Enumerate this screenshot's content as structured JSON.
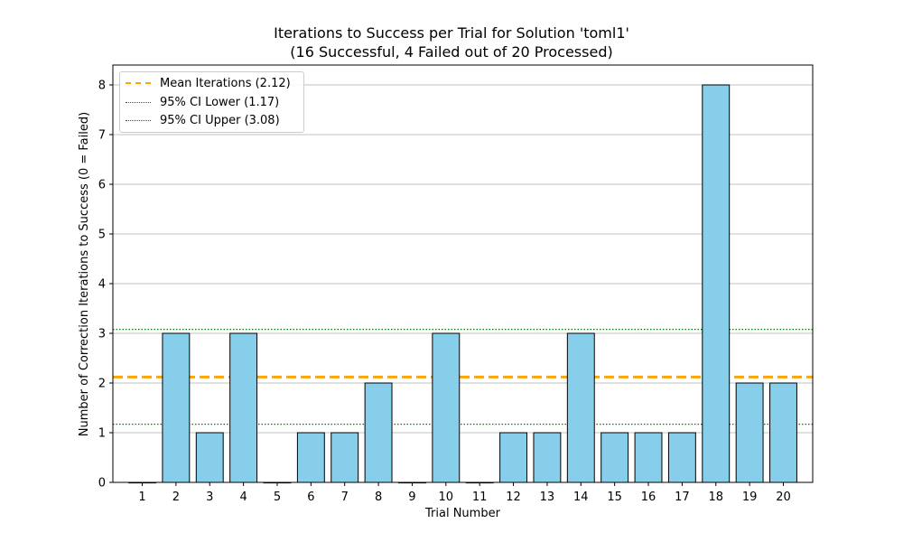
{
  "chart_data": {
    "type": "bar",
    "title": "Iterations to Success per Trial for Solution 'toml1'",
    "subtitle": "(16 Successful, 4 Failed out of 20 Processed)",
    "xlabel": "Trial Number",
    "ylabel": "Number of Correction Iterations to Success (0 = Failed)",
    "categories": [
      "1",
      "2",
      "3",
      "4",
      "5",
      "6",
      "7",
      "8",
      "9",
      "10",
      "11",
      "12",
      "13",
      "14",
      "15",
      "16",
      "17",
      "18",
      "19",
      "20"
    ],
    "values": [
      0,
      3,
      1,
      3,
      0,
      1,
      1,
      2,
      0,
      3,
      0,
      1,
      1,
      3,
      1,
      1,
      1,
      8,
      2,
      2
    ],
    "ylim": [
      0,
      8.4
    ],
    "yticks": [
      0,
      1,
      2,
      3,
      4,
      5,
      6,
      7,
      8
    ],
    "grid": "y",
    "bar_color": "#87ceeb",
    "bar_edge_color": "#000000",
    "reference_lines": [
      {
        "label": "Mean Iterations (2.12)",
        "value": 2.12,
        "color": "#ffa500",
        "style": "dashed"
      },
      {
        "label": "95% CI Lower (1.17)",
        "value": 1.17,
        "color": "#008000",
        "style": "dotted"
      },
      {
        "label": "95% CI Upper (3.08)",
        "value": 3.08,
        "color": "#008000",
        "style": "dotted"
      }
    ],
    "legend_position": "top-left"
  }
}
